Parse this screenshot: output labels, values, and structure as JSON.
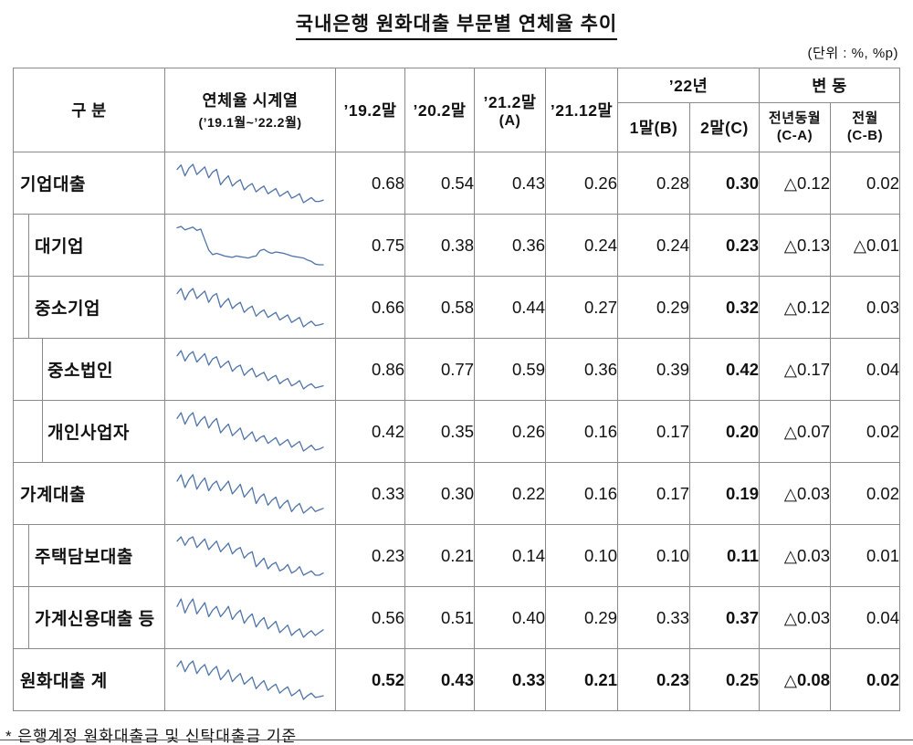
{
  "title": "국내은행 원화대출 부문별 연체율 추이",
  "unit_note": "(단위 : %, %p)",
  "footnote": "* 은행계정 원화대출금 및 신탁대출금 기준",
  "colors": {
    "sparkline": "#4f74a8",
    "border": "#8a8a8a",
    "text": "#111111"
  },
  "header": {
    "col_category": "구 분",
    "col_series": "연체율 시계열",
    "col_series_sub": "(’19.1월~’22.2월)",
    "col_19": "’19.2말",
    "col_20": "’20.2말",
    "col_21a_line1": "’21.2말",
    "col_21a_line2": "(A)",
    "col_2112": "’21.12말",
    "col_22": "’22년",
    "col_22_1": "1말(B)",
    "col_22_2": "2말(C)",
    "col_change": "변 동",
    "col_change_yoy_line1": "전년동월",
    "col_change_yoy_line2": "(C-A)",
    "col_change_mom_line1": "전월",
    "col_change_mom_line2": "(C-B)"
  },
  "chart_data": {
    "type": "table",
    "title": "국내은행 원화대출 부문별 연체율 추이",
    "unit": "%, %p",
    "sparkline_range": "’19.1월~’22.2월",
    "columns": [
      "구 분",
      "연체율 시계열 (’19.1월~’22.2월)",
      "’19.2말",
      "’20.2말",
      "’21.2말(A)",
      "’21.12말",
      "’22년 1말(B)",
      "’22년 2말(C)",
      "변동 전년동월(C-A)",
      "변동 전월(C-B)"
    ],
    "rows": [
      {
        "label": "기업대출",
        "level": 0,
        "total": false,
        "values": [
          "0.68",
          "0.54",
          "0.43",
          "0.26",
          "0.28",
          "0.30",
          "△0.12",
          "0.02"
        ],
        "sparkline": [
          0.78,
          0.85,
          0.68,
          0.8,
          0.86,
          0.7,
          0.76,
          0.82,
          0.65,
          0.74,
          0.78,
          0.54,
          0.62,
          0.68,
          0.52,
          0.58,
          0.62,
          0.46,
          0.52,
          0.56,
          0.43,
          0.48,
          0.52,
          0.4,
          0.44,
          0.48,
          0.36,
          0.4,
          0.44,
          0.33,
          0.36,
          0.4,
          0.26,
          0.3,
          0.34,
          0.28,
          0.28,
          0.3
        ]
      },
      {
        "label": "대기업",
        "level": 1,
        "total": false,
        "values": [
          "0.75",
          "0.38",
          "0.36",
          "0.24",
          "0.24",
          "0.23",
          "△0.13",
          "△0.01"
        ],
        "sparkline": [
          0.78,
          0.8,
          0.75,
          0.77,
          0.79,
          0.74,
          0.76,
          0.6,
          0.45,
          0.38,
          0.4,
          0.38,
          0.36,
          0.35,
          0.34,
          0.36,
          0.35,
          0.34,
          0.33,
          0.35,
          0.36,
          0.44,
          0.46,
          0.42,
          0.4,
          0.42,
          0.41,
          0.4,
          0.38,
          0.36,
          0.35,
          0.34,
          0.33,
          0.3,
          0.28,
          0.24,
          0.23,
          0.23
        ]
      },
      {
        "label": "중소기업",
        "level": 1,
        "total": false,
        "values": [
          "0.66",
          "0.58",
          "0.44",
          "0.27",
          "0.29",
          "0.32",
          "△0.12",
          "0.03"
        ],
        "sparkline": [
          0.8,
          0.88,
          0.7,
          0.82,
          0.88,
          0.72,
          0.78,
          0.84,
          0.66,
          0.76,
          0.8,
          0.58,
          0.66,
          0.72,
          0.56,
          0.62,
          0.66,
          0.5,
          0.56,
          0.6,
          0.44,
          0.5,
          0.54,
          0.42,
          0.46,
          0.5,
          0.38,
          0.42,
          0.46,
          0.34,
          0.38,
          0.42,
          0.27,
          0.32,
          0.36,
          0.29,
          0.3,
          0.32
        ]
      },
      {
        "label": "중소법인",
        "level": 2,
        "total": false,
        "values": [
          "0.86",
          "0.77",
          "0.59",
          "0.36",
          "0.39",
          "0.42",
          "△0.17",
          "0.04"
        ],
        "sparkline": [
          1.0,
          1.1,
          0.9,
          1.02,
          1.08,
          0.88,
          0.96,
          1.04,
          0.82,
          0.94,
          0.98,
          0.77,
          0.84,
          0.9,
          0.7,
          0.78,
          0.82,
          0.62,
          0.7,
          0.76,
          0.59,
          0.64,
          0.68,
          0.52,
          0.58,
          0.62,
          0.46,
          0.52,
          0.56,
          0.42,
          0.46,
          0.52,
          0.36,
          0.42,
          0.46,
          0.38,
          0.4,
          0.42
        ]
      },
      {
        "label": "개인사업자",
        "level": 2,
        "total": false,
        "values": [
          "0.42",
          "0.35",
          "0.26",
          "0.16",
          "0.17",
          "0.20",
          "△0.07",
          "0.02"
        ],
        "sparkline": [
          0.5,
          0.56,
          0.44,
          0.52,
          0.56,
          0.42,
          0.48,
          0.52,
          0.4,
          0.46,
          0.5,
          0.35,
          0.4,
          0.44,
          0.32,
          0.36,
          0.4,
          0.28,
          0.32,
          0.36,
          0.26,
          0.3,
          0.32,
          0.24,
          0.27,
          0.3,
          0.22,
          0.25,
          0.28,
          0.2,
          0.23,
          0.26,
          0.16,
          0.19,
          0.22,
          0.17,
          0.18,
          0.2
        ]
      },
      {
        "label": "가계대출",
        "level": 0,
        "total": false,
        "values": [
          "0.33",
          "0.30",
          "0.22",
          "0.16",
          "0.17",
          "0.19",
          "△0.03",
          "0.02"
        ],
        "sparkline": [
          0.36,
          0.4,
          0.32,
          0.37,
          0.4,
          0.31,
          0.35,
          0.38,
          0.3,
          0.34,
          0.36,
          0.3,
          0.33,
          0.36,
          0.28,
          0.31,
          0.34,
          0.26,
          0.29,
          0.32,
          0.22,
          0.26,
          0.28,
          0.21,
          0.24,
          0.26,
          0.19,
          0.22,
          0.24,
          0.17,
          0.2,
          0.22,
          0.16,
          0.18,
          0.2,
          0.17,
          0.18,
          0.19
        ]
      },
      {
        "label": "주택담보대출",
        "level": 1,
        "total": false,
        "values": [
          "0.23",
          "0.21",
          "0.14",
          "0.10",
          "0.10",
          "0.11",
          "△0.03",
          "0.01"
        ],
        "sparkline": [
          0.26,
          0.28,
          0.24,
          0.27,
          0.28,
          0.23,
          0.25,
          0.27,
          0.22,
          0.24,
          0.26,
          0.21,
          0.23,
          0.25,
          0.2,
          0.22,
          0.23,
          0.18,
          0.2,
          0.21,
          0.14,
          0.16,
          0.18,
          0.13,
          0.15,
          0.16,
          0.12,
          0.13,
          0.15,
          0.11,
          0.12,
          0.14,
          0.1,
          0.11,
          0.12,
          0.1,
          0.1,
          0.11
        ]
      },
      {
        "label": "가계신용대출 등",
        "level": 1,
        "total": false,
        "values": [
          "0.56",
          "0.51",
          "0.40",
          "0.29",
          "0.33",
          "0.37",
          "△0.03",
          "0.04"
        ],
        "sparkline": [
          0.62,
          0.7,
          0.55,
          0.64,
          0.7,
          0.54,
          0.6,
          0.66,
          0.51,
          0.58,
          0.62,
          0.51,
          0.56,
          0.62,
          0.48,
          0.54,
          0.58,
          0.44,
          0.5,
          0.54,
          0.4,
          0.46,
          0.5,
          0.38,
          0.42,
          0.46,
          0.34,
          0.38,
          0.42,
          0.31,
          0.35,
          0.38,
          0.29,
          0.33,
          0.36,
          0.31,
          0.34,
          0.37
        ]
      },
      {
        "label": "원화대출 계",
        "level": 0,
        "total": true,
        "values": [
          "0.52",
          "0.43",
          "0.33",
          "0.21",
          "0.23",
          "0.25",
          "△0.08",
          "0.02"
        ],
        "sparkline": [
          0.58,
          0.64,
          0.52,
          0.6,
          0.64,
          0.5,
          0.56,
          0.6,
          0.48,
          0.54,
          0.58,
          0.43,
          0.48,
          0.54,
          0.41,
          0.46,
          0.5,
          0.38,
          0.42,
          0.46,
          0.33,
          0.38,
          0.42,
          0.31,
          0.35,
          0.38,
          0.28,
          0.32,
          0.35,
          0.25,
          0.28,
          0.32,
          0.21,
          0.25,
          0.28,
          0.23,
          0.24,
          0.25
        ]
      }
    ]
  }
}
